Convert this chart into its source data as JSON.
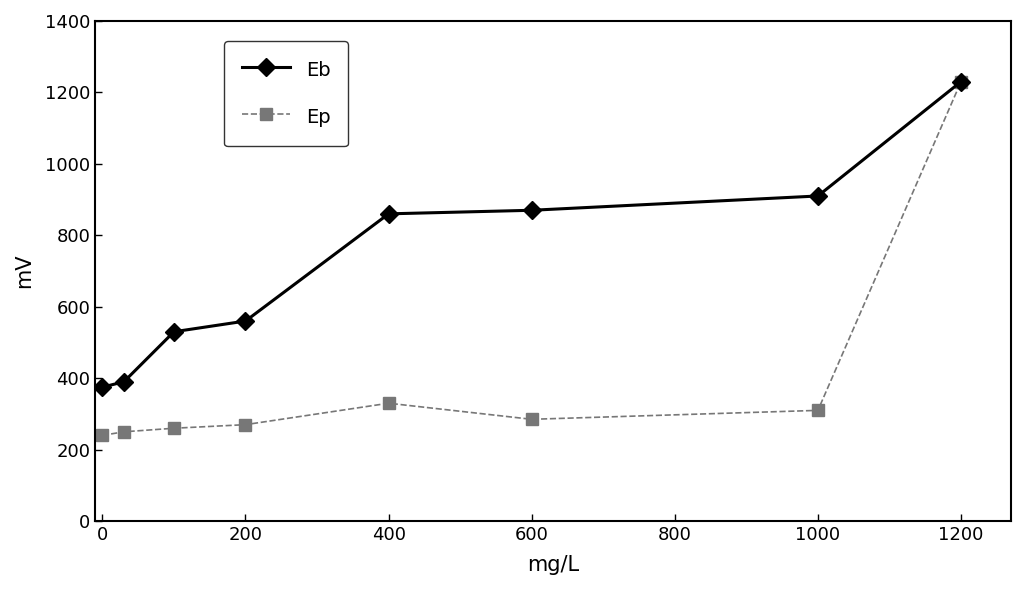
{
  "Eb_x": [
    0,
    30,
    100,
    200,
    400,
    600,
    1000,
    1200
  ],
  "Eb_y": [
    375,
    390,
    530,
    560,
    860,
    870,
    910,
    1230
  ],
  "Ep_x": [
    0,
    30,
    100,
    200,
    400,
    600,
    1000,
    1200
  ],
  "Ep_y": [
    240,
    250,
    260,
    270,
    330,
    285,
    310,
    1230
  ],
  "Eb_color": "#000000",
  "Ep_color": "#777777",
  "xlabel": "mg/L",
  "ylabel": "mV",
  "xlim": [
    -10,
    1270
  ],
  "ylim": [
    0,
    1400
  ],
  "xticks": [
    0,
    200,
    400,
    600,
    800,
    1000,
    1200
  ],
  "yticks": [
    0,
    200,
    400,
    600,
    800,
    1000,
    1200,
    1400
  ],
  "legend_Eb": "Eb",
  "legend_Ep": "Ep",
  "figsize": [
    10.25,
    5.89
  ],
  "dpi": 100
}
